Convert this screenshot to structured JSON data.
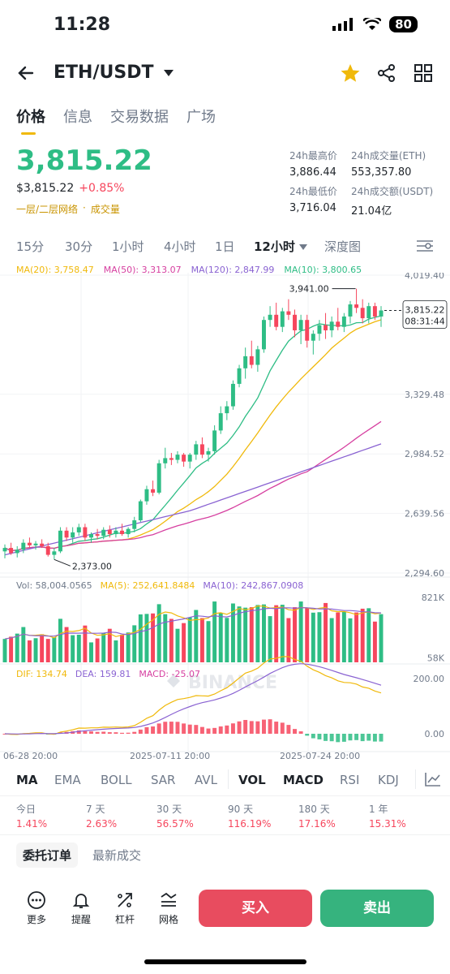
{
  "status": {
    "time": "11:28",
    "battery": "80"
  },
  "header": {
    "pair": "ETH/USDT"
  },
  "tabs": [
    "价格",
    "信息",
    "交易数据",
    "广场"
  ],
  "price": {
    "last": "3,815.22",
    "usd": "$3,815.22",
    "change": "+0.85%",
    "links": [
      "一层/二层网络",
      "成交量"
    ]
  },
  "stats": {
    "high_label": "24h最高价",
    "high": "3,886.44",
    "vol_eth_label": "24h成交量(ETH)",
    "vol_eth": "553,357.80",
    "low_label": "24h最低价",
    "low": "3,716.04",
    "vol_usdt_label": "24h成交额(USDT)",
    "vol_usdt": "21.04亿"
  },
  "intervals": [
    "15分",
    "30分",
    "1小时",
    "4小时",
    "1日",
    "12小时",
    "深度图"
  ],
  "active_interval": "12小时",
  "ma_legend": [
    {
      "label": "MA(20): 3,758.47",
      "color": "#f0b90b"
    },
    {
      "label": "MA(50): 3,313.07",
      "color": "#d63fa0"
    },
    {
      "label": "MA(120): 2,847.99",
      "color": "#8a63d2"
    },
    {
      "label": "MA(10): 3,800.65",
      "color": "#2ebd85"
    }
  ],
  "chart_data": {
    "type": "candlestick",
    "price_axis_labels": [
      "4,019.40",
      "3,329.48",
      "2,984.52",
      "2,639.56",
      "2,294.60"
    ],
    "price_axis_values": [
      4019.4,
      3329.48,
      2984.52,
      2639.56,
      2294.6
    ],
    "max_marker": "3,941.00",
    "min_marker": "2,373.00",
    "current_price_tag": "3,815.22",
    "countdown_tag": "08:31:44",
    "watermark": "BINANCE",
    "x_labels": [
      "06-28 20:00",
      "2025-07-11 20:00",
      "2025-07-24 20:00"
    ],
    "candles": [
      [
        2420,
        2460,
        2380,
        2440
      ],
      [
        2440,
        2470,
        2400,
        2410
      ],
      [
        2410,
        2450,
        2385,
        2430
      ],
      [
        2430,
        2490,
        2410,
        2470
      ],
      [
        2470,
        2500,
        2440,
        2455
      ],
      [
        2455,
        2480,
        2430,
        2465
      ],
      [
        2465,
        2490,
        2440,
        2450
      ],
      [
        2450,
        2470,
        2390,
        2400
      ],
      [
        2400,
        2440,
        2373,
        2420
      ],
      [
        2420,
        2560,
        2410,
        2540
      ],
      [
        2540,
        2560,
        2480,
        2500
      ],
      [
        2500,
        2560,
        2470,
        2530
      ],
      [
        2530,
        2580,
        2510,
        2560
      ],
      [
        2560,
        2580,
        2480,
        2500
      ],
      [
        2500,
        2530,
        2470,
        2520
      ],
      [
        2520,
        2550,
        2490,
        2510
      ],
      [
        2510,
        2560,
        2490,
        2545
      ],
      [
        2545,
        2570,
        2500,
        2520
      ],
      [
        2520,
        2560,
        2500,
        2540
      ],
      [
        2540,
        2580,
        2510,
        2520
      ],
      [
        2520,
        2560,
        2500,
        2550
      ],
      [
        2550,
        2620,
        2530,
        2600
      ],
      [
        2600,
        2720,
        2590,
        2710
      ],
      [
        2710,
        2800,
        2690,
        2780
      ],
      [
        2780,
        2830,
        2740,
        2760
      ],
      [
        2760,
        2950,
        2750,
        2930
      ],
      [
        2930,
        3020,
        2900,
        2960
      ],
      [
        2960,
        2990,
        2920,
        2950
      ],
      [
        2950,
        3000,
        2930,
        2980
      ],
      [
        2980,
        2990,
        2910,
        2940
      ],
      [
        2940,
        2990,
        2900,
        2980
      ],
      [
        2980,
        3060,
        2950,
        3040
      ],
      [
        3040,
        3080,
        2960,
        2980
      ],
      [
        2980,
        3020,
        2940,
        3000
      ],
      [
        3000,
        3150,
        2980,
        3120
      ],
      [
        3120,
        3260,
        3100,
        3220
      ],
      [
        3220,
        3290,
        3180,
        3260
      ],
      [
        3260,
        3410,
        3240,
        3390
      ],
      [
        3390,
        3500,
        3370,
        3480
      ],
      [
        3480,
        3600,
        3420,
        3550
      ],
      [
        3550,
        3640,
        3480,
        3500
      ],
      [
        3500,
        3610,
        3460,
        3590
      ],
      [
        3590,
        3780,
        3570,
        3760
      ],
      [
        3760,
        3840,
        3720,
        3790
      ],
      [
        3790,
        3860,
        3700,
        3720
      ],
      [
        3720,
        3830,
        3690,
        3810
      ],
      [
        3810,
        3880,
        3760,
        3790
      ],
      [
        3790,
        3820,
        3660,
        3700
      ],
      [
        3700,
        3790,
        3620,
        3760
      ],
      [
        3760,
        3790,
        3600,
        3640
      ],
      [
        3640,
        3700,
        3560,
        3680
      ],
      [
        3680,
        3760,
        3640,
        3730
      ],
      [
        3730,
        3800,
        3650,
        3700
      ],
      [
        3700,
        3780,
        3660,
        3750
      ],
      [
        3750,
        3830,
        3700,
        3720
      ],
      [
        3720,
        3800,
        3690,
        3780
      ],
      [
        3780,
        3870,
        3740,
        3850
      ],
      [
        3850,
        3941,
        3800,
        3830
      ],
      [
        3830,
        3880,
        3740,
        3770
      ],
      [
        3770,
        3860,
        3740,
        3840
      ],
      [
        3840,
        3860,
        3760,
        3780
      ],
      [
        3780,
        3840,
        3720,
        3815
      ]
    ],
    "volume_legend": {
      "vol": "Vol: 58,004.0565",
      "ma5": "MA(5): 252,641.8484",
      "ma10": "MA(10): 242,867.0908"
    },
    "volume_axis_labels": [
      "821K",
      "58K"
    ],
    "volume_axis_values": [
      821000,
      58000
    ],
    "macd_legend": {
      "dif": "DIF: 134.74",
      "dea": "DEA: 159.81",
      "macd": "MACD: -25.07"
    },
    "macd_axis_labels": [
      "200.00",
      "0.00"
    ],
    "macd_axis_values": [
      200,
      0
    ]
  },
  "indicator_tabs": [
    "MA",
    "EMA",
    "BOLL",
    "SAR",
    "AVL",
    "VOL",
    "MACD",
    "RSI",
    "KDJ"
  ],
  "performance": {
    "labels": [
      "今日",
      "7 天",
      "30 天",
      "90 天",
      "180 天",
      "1 年"
    ],
    "values": [
      "1.41%",
      "2.63%",
      "56.57%",
      "116.19%",
      "17.16%",
      "15.31%"
    ]
  },
  "orders": {
    "tab1": "委托订单",
    "tab2": "最新成交"
  },
  "bottom": {
    "tools": [
      "更多",
      "提醒",
      "杠杆",
      "网格"
    ],
    "buy": "买入",
    "sell": "卖出"
  },
  "colors": {
    "up": "#2ebd85",
    "down": "#f6465d",
    "accent": "#f0b90b"
  }
}
